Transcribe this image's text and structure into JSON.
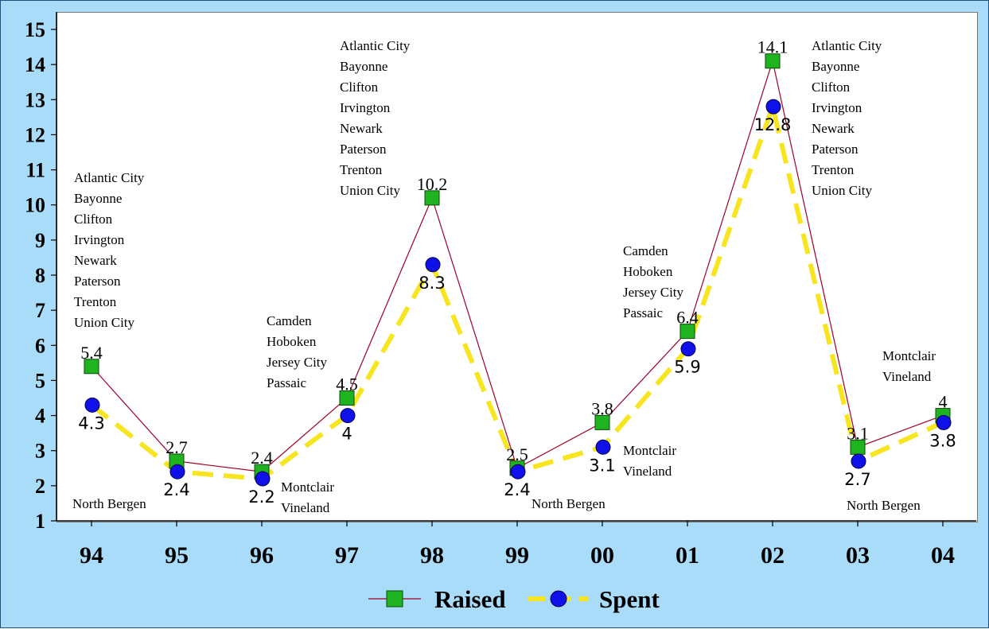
{
  "chart_data": {
    "type": "line",
    "categories": [
      "94",
      "95",
      "96",
      "97",
      "98",
      "99",
      "00",
      "01",
      "02",
      "03",
      "04"
    ],
    "series": [
      {
        "name": "Raised",
        "values": [
          5.4,
          2.7,
          2.4,
          4.5,
          10.2,
          2.5,
          3.8,
          6.4,
          14.1,
          3.1,
          4
        ],
        "labels": [
          "5.4",
          "2.7",
          "2.4",
          "4.5",
          "10.2",
          "2.5",
          "3.8",
          "6.4",
          "14.1",
          "3.1",
          "4"
        ],
        "line_color": "#a00024",
        "marker": "square",
        "marker_color": "#1fb31f"
      },
      {
        "name": "Spent",
        "values": [
          4.3,
          2.4,
          2.2,
          4,
          8.3,
          2.4,
          3.1,
          5.9,
          12.8,
          2.7,
          3.8
        ],
        "labels": [
          "4.3",
          "2.4",
          "2.2",
          "4",
          "8.3",
          "2.4",
          "3.1",
          "5.9",
          "12.8",
          "2.7",
          "3.8"
        ],
        "line_color": "#f7e51f",
        "line_style": "dashed",
        "marker": "circle",
        "marker_color": "#1010e8"
      }
    ],
    "yticks": [
      "1",
      "2",
      "3",
      "4",
      "5",
      "6",
      "7",
      "8",
      "9",
      "10",
      "11",
      "12",
      "13",
      "14",
      "15"
    ],
    "ylim": [
      1,
      15
    ],
    "grid": false,
    "legend_position": "bottom",
    "background": "#a8dcf8",
    "annotations": [
      {
        "category": "94",
        "lines": [
          "Atlantic City",
          "Bayonne",
          "Clifton",
          "Irvington",
          "Newark",
          "Paterson",
          "Trenton",
          "Union City"
        ]
      },
      {
        "category": "94",
        "lines": [
          "North Bergen"
        ]
      },
      {
        "category": "96",
        "lines": [
          "Camden",
          "Hoboken",
          "Jersey City",
          "Passaic"
        ]
      },
      {
        "category": "96",
        "lines": [
          "Montclair",
          "Vineland"
        ]
      },
      {
        "category": "98",
        "lines": [
          "Atlantic City",
          "Bayonne",
          "Clifton",
          "Irvington",
          "Newark",
          "Paterson",
          "Trenton",
          "Union City"
        ]
      },
      {
        "category": "99",
        "lines": [
          "North Bergen"
        ]
      },
      {
        "category": "00",
        "lines": [
          "Montclair",
          "Vineland"
        ]
      },
      {
        "category": "01",
        "lines": [
          "Camden",
          "Hoboken",
          "Jersey City",
          "Passaic"
        ]
      },
      {
        "category": "02",
        "lines": [
          "Atlantic City",
          "Bayonne",
          "Clifton",
          "Irvington",
          "Newark",
          "Paterson",
          "Trenton",
          "Union City"
        ]
      },
      {
        "category": "03",
        "lines": [
          "North Bergen"
        ]
      },
      {
        "category": "04",
        "lines": [
          "Montclair",
          "Vineland"
        ]
      }
    ]
  }
}
